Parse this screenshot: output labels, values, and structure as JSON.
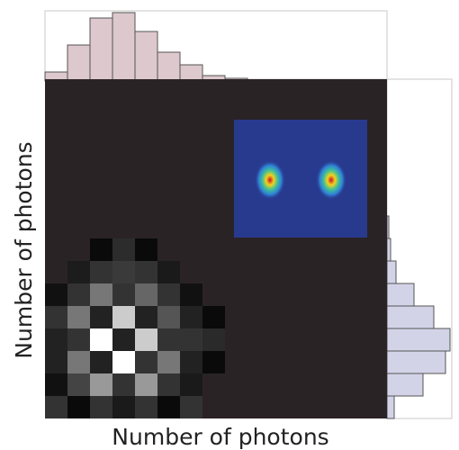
{
  "chart_data": {
    "type": "heatmap",
    "xlabel": "Number of photons",
    "ylabel": "Number of photons",
    "background_color": "#2a2326",
    "matrix": [
      [
        null,
        null,
        10,
        44,
        10,
        null,
        null,
        null
      ],
      [
        null,
        28,
        51,
        58,
        51,
        26,
        null,
        null
      ],
      [
        17,
        51,
        119,
        51,
        102,
        51,
        17,
        null
      ],
      [
        51,
        119,
        34,
        204,
        34,
        85,
        34,
        10
      ],
      [
        34,
        51,
        255,
        34,
        204,
        51,
        51,
        42
      ],
      [
        34,
        119,
        34,
        255,
        51,
        119,
        34,
        10
      ],
      [
        17,
        68,
        153,
        51,
        153,
        51,
        26,
        null
      ],
      [
        51,
        10,
        51,
        26,
        51,
        10,
        51,
        null
      ]
    ],
    "top_hist": {
      "values": [
        8,
        38,
        68,
        74,
        53,
        30,
        16,
        4,
        1
      ],
      "lim": [
        0,
        76
      ],
      "color": "#dcc8cd"
    },
    "right_hist": {
      "values": [
        2,
        4,
        10,
        30,
        52,
        70,
        65,
        40,
        8
      ],
      "lim": [
        0,
        72
      ],
      "color": "#d3d3e8"
    }
  }
}
